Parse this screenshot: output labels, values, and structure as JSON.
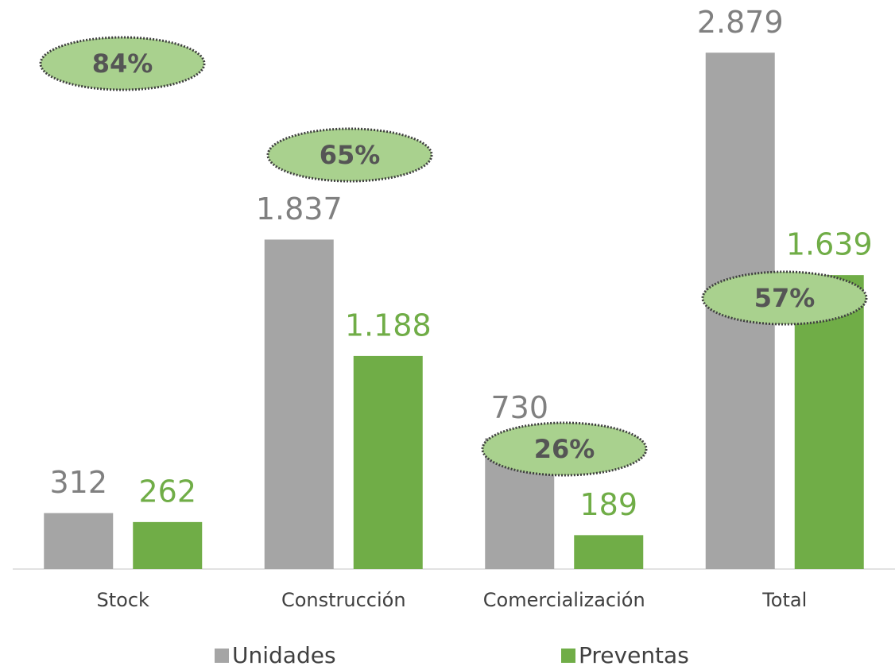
{
  "chart_data": {
    "type": "bar",
    "categories": [
      "Stock",
      "Construcción",
      "Comercialización",
      "Total"
    ],
    "series": [
      {
        "name": "Unidades",
        "color": "#a5a5a5",
        "values": [
          312,
          1837,
          730,
          2879
        ],
        "value_labels": [
          "312",
          "1.837",
          "730",
          "2.879"
        ]
      },
      {
        "name": "Preventas",
        "color": "#70ad47",
        "values": [
          262,
          1188,
          189,
          1639
        ],
        "value_labels": [
          "262",
          "1.188",
          "189",
          "1.639"
        ]
      }
    ],
    "ylim": [
      0,
      3000
    ],
    "annotations": [
      "84%",
      "65%",
      "26%",
      "57%"
    ]
  }
}
